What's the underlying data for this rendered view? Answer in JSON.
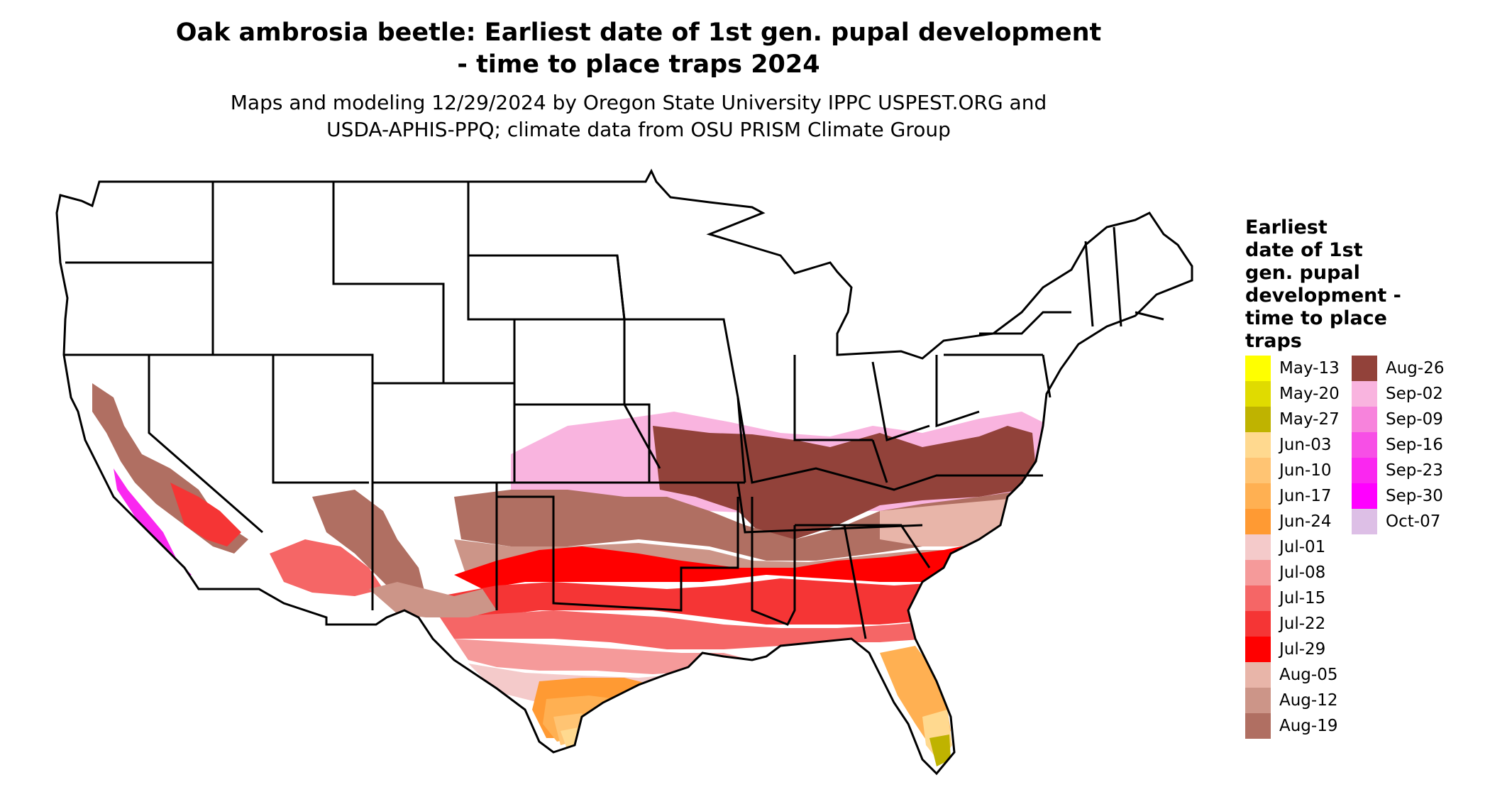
{
  "title": {
    "line1": "Oak ambrosia beetle: Earliest date of 1st gen. pupal development",
    "line2": "- time to place traps 2024"
  },
  "subtitle": {
    "line1": "Maps and modeling 12/29/2024 by Oregon State University IPPC USPEST.ORG and",
    "line2": "USDA-APHIS-PPQ; climate data from OSU PRISM Climate Group"
  },
  "legend": {
    "title_lines": [
      "Earliest",
      "date of 1st",
      "gen. pupal",
      "development -",
      "time to place",
      "traps"
    ],
    "items": [
      {
        "label": "May-13",
        "color": "#FFFF00"
      },
      {
        "label": "May-20",
        "color": "#E0DB00"
      },
      {
        "label": "May-27",
        "color": "#BFB300"
      },
      {
        "label": "Jun-03",
        "color": "#FFD98F"
      },
      {
        "label": "Jun-10",
        "color": "#FFC473"
      },
      {
        "label": "Jun-17",
        "color": "#FFB052"
      },
      {
        "label": "Jun-24",
        "color": "#FF9A33"
      },
      {
        "label": "Jul-01",
        "color": "#F4CACA"
      },
      {
        "label": "Jul-08",
        "color": "#F59A9A"
      },
      {
        "label": "Jul-15",
        "color": "#F56666"
      },
      {
        "label": "Jul-22",
        "color": "#F53535"
      },
      {
        "label": "Jul-29",
        "color": "#FF0000"
      },
      {
        "label": "Aug-05",
        "color": "#E8B5A9"
      },
      {
        "label": "Aug-12",
        "color": "#CC9588"
      },
      {
        "label": "Aug-19",
        "color": "#B06F62"
      },
      {
        "label": "Aug-26",
        "color": "#92423A"
      },
      {
        "label": "Sep-02",
        "color": "#F9B4DF"
      },
      {
        "label": "Sep-09",
        "color": "#F783DC"
      },
      {
        "label": "Sep-16",
        "color": "#F74FE6"
      },
      {
        "label": "Sep-23",
        "color": "#FA27F0"
      },
      {
        "label": "Sep-30",
        "color": "#FF00FF"
      },
      {
        "label": "Oct-07",
        "color": "#DDBFE6"
      }
    ]
  },
  "map": {
    "background": "#FFFFFF",
    "border_color": "#000000"
  }
}
